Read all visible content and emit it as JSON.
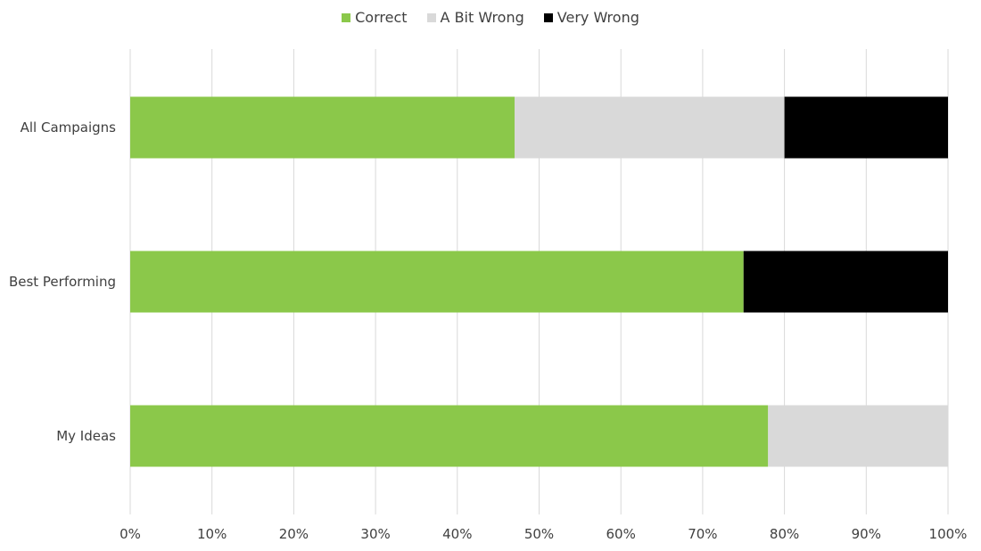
{
  "chart_data": {
    "type": "bar",
    "orientation": "horizontal",
    "stacked": true,
    "categories": [
      "All Campaigns",
      "Best Performing",
      "My Ideas"
    ],
    "series": [
      {
        "name": "Correct",
        "color": "#8BC84A",
        "values": [
          0.47,
          0.75,
          0.78
        ]
      },
      {
        "name": "A Bit Wrong",
        "color": "#D9D9D9",
        "values": [
          0.33,
          0.0,
          0.22
        ]
      },
      {
        "name": "Very Wrong",
        "color": "#000000",
        "values": [
          0.2,
          0.25,
          0.0
        ]
      }
    ],
    "x_ticks": [
      "0%",
      "10%",
      "20%",
      "30%",
      "40%",
      "50%",
      "60%",
      "70%",
      "80%",
      "90%",
      "100%"
    ],
    "xlim": [
      0,
      1
    ],
    "grid": "vertical",
    "legend_position": "top-center",
    "gridline_color": "#D9D9D9",
    "title": "",
    "xlabel": "",
    "ylabel": ""
  }
}
